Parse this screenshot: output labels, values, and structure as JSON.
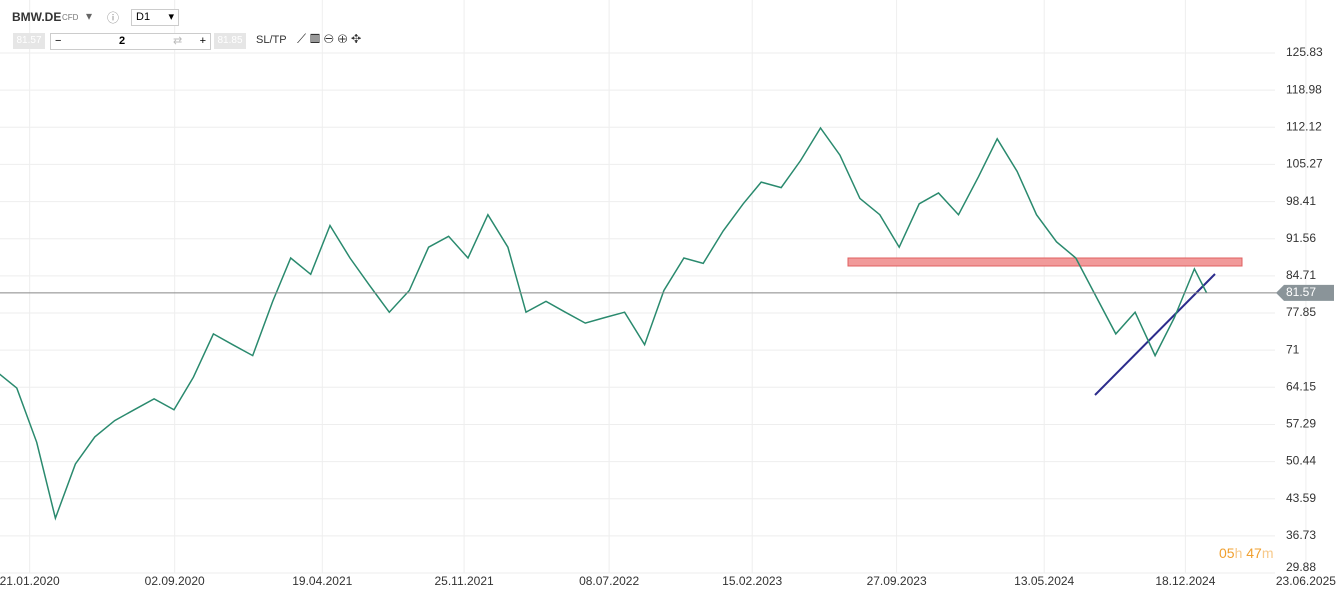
{
  "toolbar": {
    "symbol": "BMW.DE",
    "kind": "CFD",
    "interval": "D1",
    "sell": "81.57",
    "quantity": "2",
    "buy": "81.85",
    "sltp": "SL/TP"
  },
  "countdown": {
    "hours": "05",
    "h": "h",
    "minutes": "47",
    "m": "m"
  },
  "chart_data": {
    "type": "line",
    "color": "#2a8a6e",
    "grid": true,
    "x": [
      "2019-12-01",
      "2020-01-01",
      "2020-02-01",
      "2020-03-01",
      "2020-04-01",
      "2020-05-01",
      "2020-06-01",
      "2020-07-01",
      "2020-08-01",
      "2020-09-01",
      "2020-10-01",
      "2020-11-01",
      "2020-12-01",
      "2021-01-01",
      "2021-02-01",
      "2021-03-01",
      "2021-04-01",
      "2021-05-01",
      "2021-06-01",
      "2021-07-01",
      "2021-08-01",
      "2021-09-01",
      "2021-10-01",
      "2021-11-01",
      "2021-12-01",
      "2022-01-01",
      "2022-02-01",
      "2022-03-01",
      "2022-04-01",
      "2022-05-01",
      "2022-06-01",
      "2022-07-01",
      "2022-08-01",
      "2022-09-01",
      "2022-10-01",
      "2022-11-01",
      "2022-12-01",
      "2023-01-01",
      "2023-02-01",
      "2023-03-01",
      "2023-04-01",
      "2023-05-01",
      "2023-06-01",
      "2023-07-01",
      "2023-08-01",
      "2023-09-01",
      "2023-10-01",
      "2023-11-01",
      "2023-12-01",
      "2024-01-01",
      "2024-02-01",
      "2024-03-01",
      "2024-04-01",
      "2024-05-01",
      "2024-06-01",
      "2024-07-01",
      "2024-08-01",
      "2024-09-01",
      "2024-10-01",
      "2024-11-01",
      "2024-12-01",
      "2025-01-01",
      "2025-01-20"
    ],
    "values": [
      67,
      64,
      54,
      40,
      50,
      55,
      58,
      60,
      62,
      60,
      66,
      74,
      72,
      70,
      80,
      88,
      85,
      94,
      88,
      83,
      78,
      82,
      90,
      92,
      88,
      96,
      90,
      78,
      80,
      78,
      76,
      77,
      78,
      72,
      82,
      88,
      87,
      93,
      98,
      102,
      101,
      106,
      112,
      107,
      99,
      96,
      90,
      98,
      100,
      96,
      103,
      110,
      104,
      96,
      91,
      88,
      81,
      74,
      78,
      70,
      77,
      86,
      81.57
    ],
    "last_price": 81.57,
    "xlim": [
      "2019-12-06",
      "2025-08-18"
    ],
    "xticks": [
      {
        "value": "2020-01-21",
        "label": "21.01.2020"
      },
      {
        "value": "2020-09-02",
        "label": "02.09.2020"
      },
      {
        "value": "2021-04-19",
        "label": "19.04.2021"
      },
      {
        "value": "2021-11-25",
        "label": "25.11.2021"
      },
      {
        "value": "2022-07-08",
        "label": "08.07.2022"
      },
      {
        "value": "2023-02-15",
        "label": "15.02.2023"
      },
      {
        "value": "2023-09-27",
        "label": "27.09.2023"
      },
      {
        "value": "2024-05-13",
        "label": "13.05.2024"
      },
      {
        "value": "2024-12-18",
        "label": "18.12.2024"
      },
      {
        "value": "2025-06-23",
        "label": "23.06.2025"
      }
    ],
    "ylim": [
      29.88,
      135.61
    ],
    "yticks": [
      125.83,
      118.98,
      112.12,
      105.27,
      98.41,
      91.56,
      84.71,
      77.85,
      71,
      64.15,
      57.29,
      50.44,
      43.59,
      36.73,
      29.88
    ]
  }
}
